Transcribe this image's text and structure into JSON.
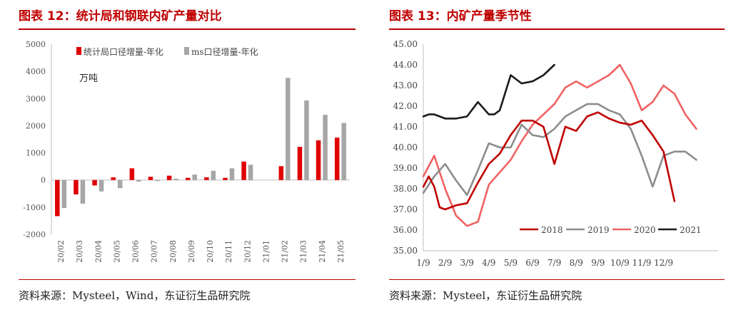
{
  "figure1": {
    "title": "图表 12：统计局和钢联内矿产量对比",
    "source": "资料来源：Mysteel，Wind，东证衍生品研究院"
  },
  "figure2": {
    "title": "图表 13：内矿产量季节性",
    "source": "资料来源：Mysteel，东证衍生品研究院"
  },
  "chart_data": [
    {
      "type": "bar",
      "title": "",
      "annotation": "万吨",
      "categories": [
        "20/02",
        "20/03",
        "20/04",
        "20/05",
        "20/06",
        "20/07",
        "20/08",
        "20/09",
        "20/10",
        "20/11",
        "20/12",
        "21/01",
        "21/02",
        "21/03",
        "21/04",
        "21/05"
      ],
      "series": [
        {
          "name": "统计局口径增量-年化",
          "color": "#e00000",
          "values": [
            -1330,
            -530,
            -200,
            100,
            430,
            120,
            160,
            80,
            100,
            80,
            680,
            null,
            510,
            1220,
            1460,
            1560
          ]
        },
        {
          "name": "ms口径增量-年化",
          "color": "#a6a6a6",
          "values": [
            -1030,
            -870,
            -420,
            -300,
            -60,
            -40,
            50,
            200,
            340,
            430,
            560,
            null,
            3760,
            2930,
            2400,
            2100
          ]
        }
      ],
      "ylim": [
        -2000,
        5000
      ],
      "yticks": [
        -2000,
        -1000,
        0,
        1000,
        2000,
        3000,
        4000,
        5000
      ],
      "legend": "top-left"
    },
    {
      "type": "line",
      "title": "",
      "x_ticks": [
        "1/9",
        "2/9",
        "3/9",
        "4/9",
        "5/9",
        "6/9",
        "7/9",
        "8/9",
        "9/9",
        "10/9",
        "11/9",
        "12/9"
      ],
      "ylim": [
        35,
        45
      ],
      "yticks": [
        "35.00",
        "36.00",
        "37.00",
        "38.00",
        "39.00",
        "40.00",
        "41.00",
        "42.00",
        "43.00",
        "44.00",
        "45.00"
      ],
      "legend": "bottom",
      "series": [
        {
          "name": "2018",
          "color": "#c00000",
          "x": [
            0,
            0.25,
            0.5,
            0.75,
            1,
            1.5,
            2,
            2.5,
            3,
            3.5,
            4,
            4.5,
            5,
            5.5,
            6,
            6.5,
            7,
            7.5,
            8,
            8.5,
            9,
            9.5,
            10,
            10.5,
            11,
            11.5
          ],
          "y": [
            38.1,
            38.6,
            38.1,
            37.1,
            37.0,
            37.2,
            37.3,
            38.3,
            39.2,
            39.7,
            40.6,
            41.3,
            41.3,
            41.0,
            39.2,
            41.0,
            40.8,
            41.5,
            41.7,
            41.4,
            41.2,
            41.1,
            41.3,
            40.6,
            39.8,
            37.4
          ]
        },
        {
          "name": "2019",
          "color": "#8c8c8c",
          "x": [
            0,
            0.5,
            1,
            1.5,
            2,
            2.5,
            3,
            3.5,
            4,
            4.5,
            5,
            5.5,
            6,
            6.5,
            7,
            7.5,
            8,
            8.5,
            9,
            9.5,
            10,
            10.5,
            11,
            11.5,
            12,
            12.5
          ],
          "y": [
            37.8,
            38.6,
            39.2,
            38.4,
            37.7,
            38.9,
            40.2,
            40.0,
            40.0,
            41.1,
            40.6,
            40.5,
            40.9,
            41.5,
            41.8,
            42.1,
            42.1,
            41.8,
            41.6,
            40.9,
            39.6,
            38.1,
            39.6,
            39.8,
            39.8,
            39.4
          ]
        },
        {
          "name": "2020",
          "color": "#f06262",
          "x": [
            0,
            0.5,
            1,
            1.5,
            2,
            2.5,
            3,
            3.5,
            4,
            4.5,
            5,
            5.5,
            6,
            6.5,
            7,
            7.5,
            8,
            8.5,
            9,
            9.5,
            10,
            10.5,
            11,
            11.5,
            12,
            12.5
          ],
          "y": [
            38.6,
            39.6,
            38.0,
            36.7,
            36.2,
            36.4,
            38.2,
            38.8,
            39.4,
            40.3,
            41.1,
            41.6,
            42.1,
            42.9,
            43.2,
            42.9,
            43.2,
            43.5,
            44.0,
            43.1,
            41.8,
            42.2,
            43.0,
            42.6,
            41.6,
            40.9
          ]
        },
        {
          "name": "2021",
          "color": "#1a1a1a",
          "x": [
            0,
            0.25,
            0.5,
            1,
            1.5,
            2,
            2.5,
            3,
            3.25,
            3.5,
            4,
            4.5,
            5,
            5.5,
            6
          ],
          "y": [
            41.5,
            41.6,
            41.6,
            41.4,
            41.4,
            41.5,
            42.2,
            41.6,
            41.6,
            41.8,
            43.5,
            43.1,
            43.2,
            43.5,
            44.0
          ]
        }
      ]
    }
  ]
}
